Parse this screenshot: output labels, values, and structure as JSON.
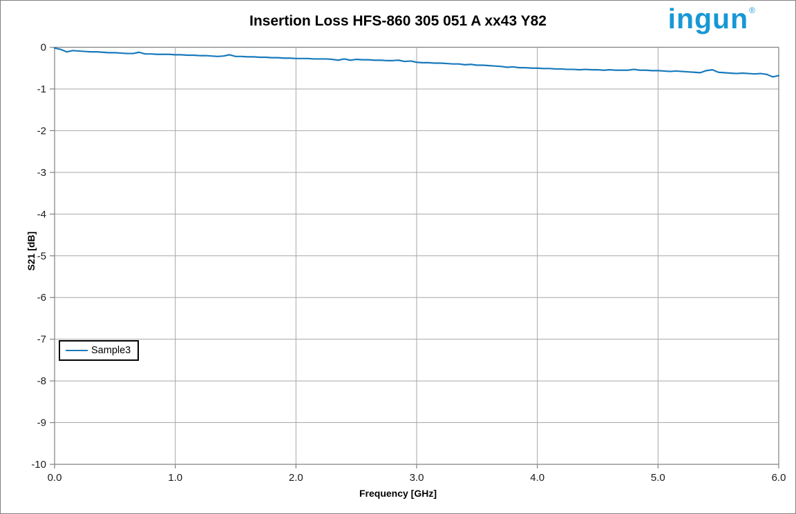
{
  "page": {
    "title": "Insertion Loss HFS-860 305 051 A xx43 Y82"
  },
  "logo": {
    "text": "ingun",
    "registered": "®",
    "color": "#1798d5"
  },
  "legend": {
    "entries": [
      {
        "label": "Sample3",
        "color": "#1779bc"
      }
    ]
  },
  "chart_data": {
    "type": "line",
    "title": "Insertion Loss HFS-860 305 051 A xx43 Y82",
    "xlabel": "Frequency [GHz]",
    "ylabel": "S21 [dB]",
    "xlim": [
      0,
      6
    ],
    "ylim": [
      -10,
      0
    ],
    "xticks": [
      0,
      1,
      2,
      3,
      4,
      5,
      6
    ],
    "xtick_labels": [
      "0.0",
      "1.0",
      "2.0",
      "3.0",
      "4.0",
      "5.0",
      "6.0"
    ],
    "yticks": [
      0,
      -1,
      -2,
      -3,
      -4,
      -5,
      -6,
      -7,
      -8,
      -9,
      -10
    ],
    "ytick_labels": [
      "0",
      "-1",
      "-2",
      "-3",
      "-4",
      "-5",
      "-6",
      "-7",
      "-8",
      "-9",
      "-10"
    ],
    "grid": true,
    "legend_position": "left-middle",
    "series": [
      {
        "name": "Sample3",
        "color": "#1779bc",
        "points": [
          [
            0.0,
            -0.02
          ],
          [
            0.05,
            -0.05
          ],
          [
            0.1,
            -0.11
          ],
          [
            0.15,
            -0.08
          ],
          [
            0.2,
            -0.09
          ],
          [
            0.25,
            -0.1
          ],
          [
            0.3,
            -0.11
          ],
          [
            0.35,
            -0.11
          ],
          [
            0.4,
            -0.12
          ],
          [
            0.45,
            -0.13
          ],
          [
            0.5,
            -0.13
          ],
          [
            0.55,
            -0.14
          ],
          [
            0.6,
            -0.15
          ],
          [
            0.65,
            -0.15
          ],
          [
            0.7,
            -0.12
          ],
          [
            0.75,
            -0.16
          ],
          [
            0.8,
            -0.16
          ],
          [
            0.85,
            -0.17
          ],
          [
            0.9,
            -0.17
          ],
          [
            0.95,
            -0.17
          ],
          [
            1.0,
            -0.18
          ],
          [
            1.05,
            -0.18
          ],
          [
            1.1,
            -0.19
          ],
          [
            1.15,
            -0.19
          ],
          [
            1.2,
            -0.2
          ],
          [
            1.25,
            -0.2
          ],
          [
            1.3,
            -0.21
          ],
          [
            1.35,
            -0.22
          ],
          [
            1.4,
            -0.21
          ],
          [
            1.45,
            -0.18
          ],
          [
            1.5,
            -0.22
          ],
          [
            1.55,
            -0.22
          ],
          [
            1.6,
            -0.23
          ],
          [
            1.65,
            -0.23
          ],
          [
            1.7,
            -0.24
          ],
          [
            1.75,
            -0.24
          ],
          [
            1.8,
            -0.25
          ],
          [
            1.85,
            -0.25
          ],
          [
            1.9,
            -0.26
          ],
          [
            1.95,
            -0.26
          ],
          [
            2.0,
            -0.27
          ],
          [
            2.05,
            -0.27
          ],
          [
            2.1,
            -0.27
          ],
          [
            2.15,
            -0.28
          ],
          [
            2.2,
            -0.28
          ],
          [
            2.25,
            -0.28
          ],
          [
            2.3,
            -0.29
          ],
          [
            2.35,
            -0.31
          ],
          [
            2.4,
            -0.28
          ],
          [
            2.45,
            -0.31
          ],
          [
            2.5,
            -0.29
          ],
          [
            2.55,
            -0.3
          ],
          [
            2.6,
            -0.3
          ],
          [
            2.65,
            -0.31
          ],
          [
            2.7,
            -0.31
          ],
          [
            2.75,
            -0.32
          ],
          [
            2.8,
            -0.32
          ],
          [
            2.85,
            -0.31
          ],
          [
            2.9,
            -0.34
          ],
          [
            2.95,
            -0.33
          ],
          [
            3.0,
            -0.36
          ],
          [
            3.05,
            -0.37
          ],
          [
            3.1,
            -0.37
          ],
          [
            3.15,
            -0.38
          ],
          [
            3.2,
            -0.38
          ],
          [
            3.25,
            -0.39
          ],
          [
            3.3,
            -0.4
          ],
          [
            3.35,
            -0.4
          ],
          [
            3.4,
            -0.42
          ],
          [
            3.45,
            -0.41
          ],
          [
            3.5,
            -0.43
          ],
          [
            3.55,
            -0.43
          ],
          [
            3.6,
            -0.44
          ],
          [
            3.65,
            -0.45
          ],
          [
            3.7,
            -0.46
          ],
          [
            3.75,
            -0.48
          ],
          [
            3.8,
            -0.47
          ],
          [
            3.85,
            -0.49
          ],
          [
            3.9,
            -0.49
          ],
          [
            3.95,
            -0.5
          ],
          [
            4.0,
            -0.5
          ],
          [
            4.05,
            -0.51
          ],
          [
            4.1,
            -0.51
          ],
          [
            4.15,
            -0.52
          ],
          [
            4.2,
            -0.52
          ],
          [
            4.25,
            -0.53
          ],
          [
            4.3,
            -0.53
          ],
          [
            4.35,
            -0.54
          ],
          [
            4.4,
            -0.53
          ],
          [
            4.45,
            -0.54
          ],
          [
            4.5,
            -0.54
          ],
          [
            4.55,
            -0.55
          ],
          [
            4.6,
            -0.54
          ],
          [
            4.65,
            -0.55
          ],
          [
            4.7,
            -0.55
          ],
          [
            4.75,
            -0.55
          ],
          [
            4.8,
            -0.53
          ],
          [
            4.85,
            -0.55
          ],
          [
            4.9,
            -0.55
          ],
          [
            4.95,
            -0.56
          ],
          [
            5.0,
            -0.56
          ],
          [
            5.05,
            -0.57
          ],
          [
            5.1,
            -0.58
          ],
          [
            5.15,
            -0.57
          ],
          [
            5.2,
            -0.58
          ],
          [
            5.25,
            -0.59
          ],
          [
            5.3,
            -0.6
          ],
          [
            5.35,
            -0.61
          ],
          [
            5.4,
            -0.56
          ],
          [
            5.45,
            -0.54
          ],
          [
            5.5,
            -0.6
          ],
          [
            5.55,
            -0.61
          ],
          [
            5.6,
            -0.62
          ],
          [
            5.65,
            -0.63
          ],
          [
            5.7,
            -0.62
          ],
          [
            5.75,
            -0.63
          ],
          [
            5.8,
            -0.64
          ],
          [
            5.85,
            -0.63
          ],
          [
            5.9,
            -0.65
          ],
          [
            5.95,
            -0.71
          ],
          [
            6.0,
            -0.68
          ]
        ]
      }
    ]
  }
}
